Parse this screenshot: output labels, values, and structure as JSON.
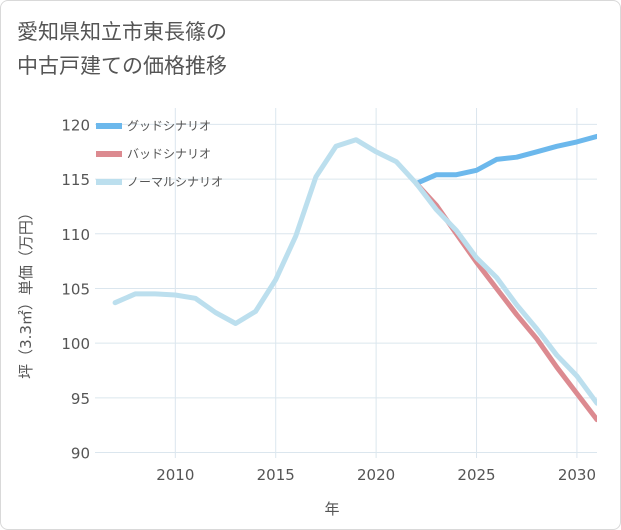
{
  "title_lines": [
    "愛知県知立市東長篠の",
    "中古戸建ての価格推移"
  ],
  "chart_data": {
    "type": "line",
    "xlabel": "年",
    "ylabel": "坪（3.3㎡）単価（万円）",
    "xlim": [
      2006,
      2031
    ],
    "ylim": [
      89.5,
      121.5
    ],
    "xticks": [
      2010,
      2015,
      2020,
      2025,
      2030
    ],
    "yticks": [
      90,
      95,
      100,
      105,
      110,
      115,
      120
    ],
    "grid": true,
    "legend_position": "top-left",
    "series": [
      {
        "name": "グッドシナリオ",
        "color": "#6cb8ec",
        "x": [
          2022,
          2023,
          2024,
          2025,
          2026,
          2027,
          2028,
          2029,
          2030,
          2031
        ],
        "values": [
          114.6,
          115.4,
          115.4,
          115.8,
          116.8,
          117.0,
          117.5,
          118.0,
          118.4,
          118.9
        ]
      },
      {
        "name": "バッドシナリオ",
        "color": "#dc8a90",
        "x": [
          2022,
          2023,
          2024,
          2025,
          2026,
          2027,
          2028,
          2029,
          2030,
          2031
        ],
        "values": [
          114.6,
          112.6,
          110.0,
          107.4,
          105.0,
          102.6,
          100.4,
          97.8,
          95.4,
          93.0
        ]
      },
      {
        "name": "ノーマルシナリオ",
        "color": "#bcdfee",
        "x": [
          2007,
          2008,
          2009,
          2010,
          2011,
          2012,
          2013,
          2014,
          2015,
          2016,
          2017,
          2018,
          2019,
          2020,
          2021,
          2022,
          2023,
          2024,
          2025,
          2026,
          2027,
          2028,
          2029,
          2030,
          2031
        ],
        "values": [
          103.7,
          104.5,
          104.5,
          104.4,
          104.1,
          102.8,
          101.8,
          102.9,
          105.8,
          109.8,
          115.2,
          118.0,
          118.6,
          117.5,
          116.6,
          114.6,
          112.2,
          110.3,
          107.8,
          106.0,
          103.5,
          101.3,
          98.9,
          97.0,
          94.5
        ]
      }
    ]
  }
}
